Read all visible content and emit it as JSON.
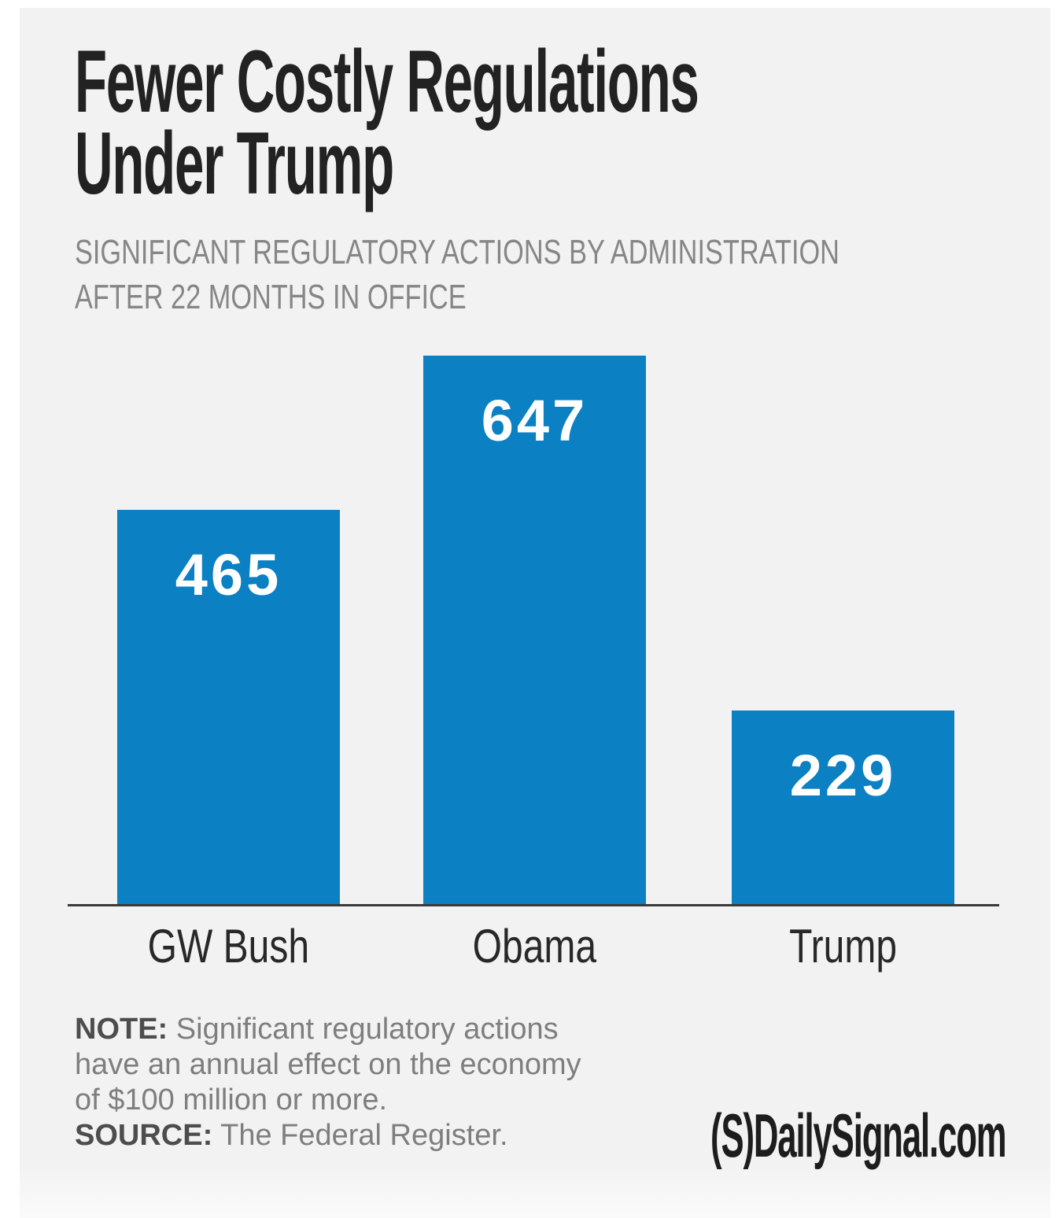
{
  "page": {
    "background": "#ffffff",
    "panel_background": "#f2f2f2"
  },
  "header": {
    "title_line1": "Fewer Costly Regulations",
    "title_line2": "Under Trump",
    "subtitle_line1": "SIGNIFICANT REGULATORY ACTIONS BY ADMINISTRATION",
    "subtitle_line2": "AFTER 22 MONTHS IN OFFICE"
  },
  "chart_data": {
    "type": "bar",
    "title": "Fewer Costly Regulations Under Trump",
    "subtitle": "Significant regulatory actions by administration after 22 months in office",
    "categories": [
      "GW Bush",
      "Obama",
      "Trump"
    ],
    "values": [
      465,
      647,
      229
    ],
    "ylim": [
      0,
      700
    ],
    "gridlines": false,
    "legend": "none",
    "bar_color": "#0b80c3",
    "value_label_color": "#ffffff",
    "axis_line_color": "#3a3a3a"
  },
  "footer": {
    "note_label": "NOTE:",
    "note_line1": " Significant regulatory actions",
    "note_line2": "have an annual effect on the economy",
    "note_line3": "of $100 million or more.",
    "source_label": "SOURCE:",
    "source_text": " The Federal Register.",
    "logo_text": "(S)DailySignal.com"
  }
}
